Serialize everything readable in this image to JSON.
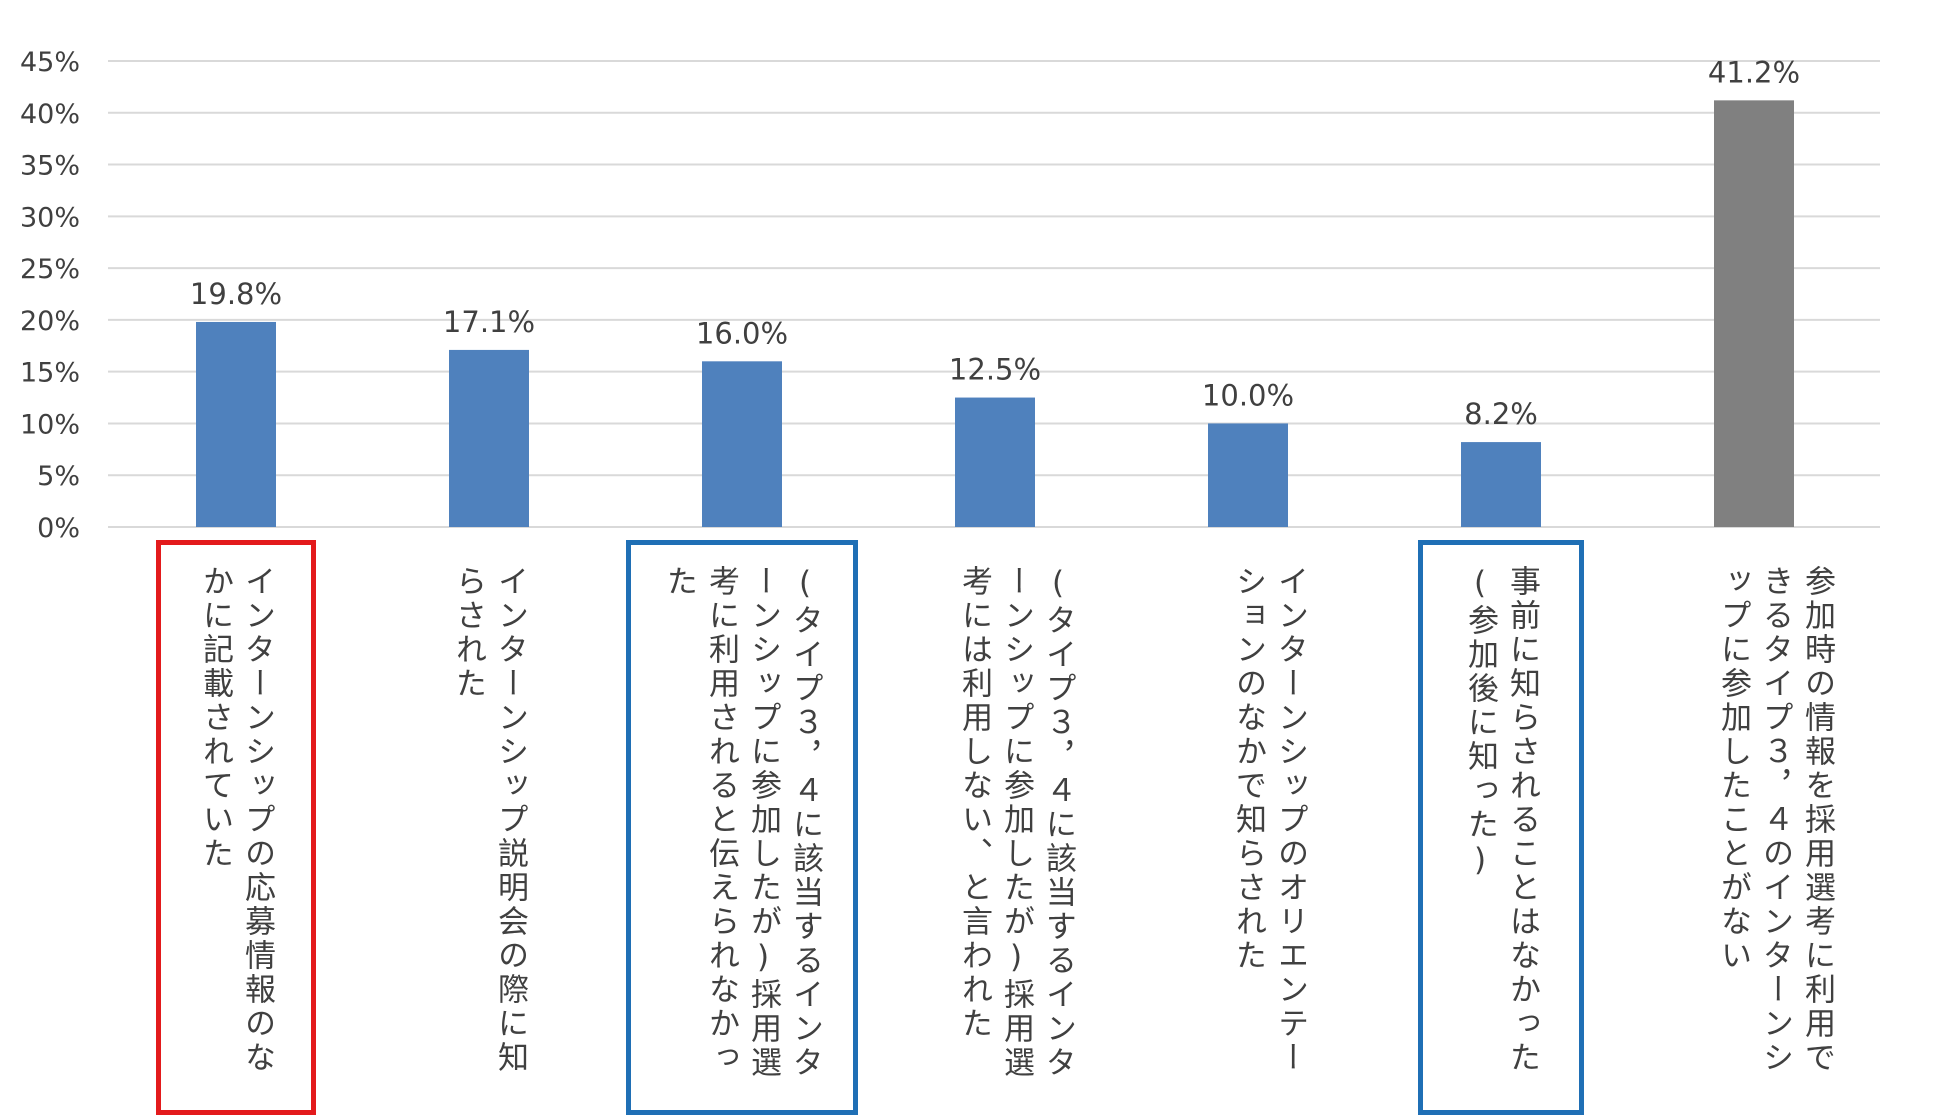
{
  "chart_data": {
    "type": "bar",
    "categories": [
      "インターンシップの応募情報のなかに記載されていた",
      "インターンシップ説明会の際に知らされた",
      "(タイプ３，４に該当するインターンシップに参加したが)採用選考に利用されると伝えられなかった",
      "(タイプ３，４に該当するインターンシップに参加したが)採用選考には利用しない、と言われた",
      "インターンシップのオリエンテーションのなかで知らされた",
      "事前に知らされることはなかった(参加後に知った)",
      "参加時の情報を採用選考に利用できるタイプ３，４のインターンシップに参加したことがない"
    ],
    "values": [
      19.8,
      17.1,
      16.0,
      12.5,
      10.0,
      8.2,
      41.2
    ],
    "data_labels": [
      "19.8%",
      "17.1%",
      "16.0%",
      "12.5%",
      "10.0%",
      "8.2%",
      "41.2%"
    ],
    "y_tick_labels": [
      "0%",
      "5%",
      "10%",
      "15%",
      "20%",
      "25%",
      "30%",
      "35%",
      "40%",
      "45%"
    ],
    "ylim": [
      0,
      45
    ],
    "y_tick_step": 5,
    "grid": true,
    "colors": {
      "bar": "#4f81bd",
      "bar_last": "#808080",
      "grid": "#d9d9d9",
      "highlight_red": "#e31a1c",
      "highlight_blue": "#1f6fb5"
    },
    "highlights": [
      {
        "category_index": 0,
        "color": "red"
      },
      {
        "category_index": 2,
        "color": "blue"
      },
      {
        "category_index": 5,
        "color": "blue"
      }
    ]
  }
}
